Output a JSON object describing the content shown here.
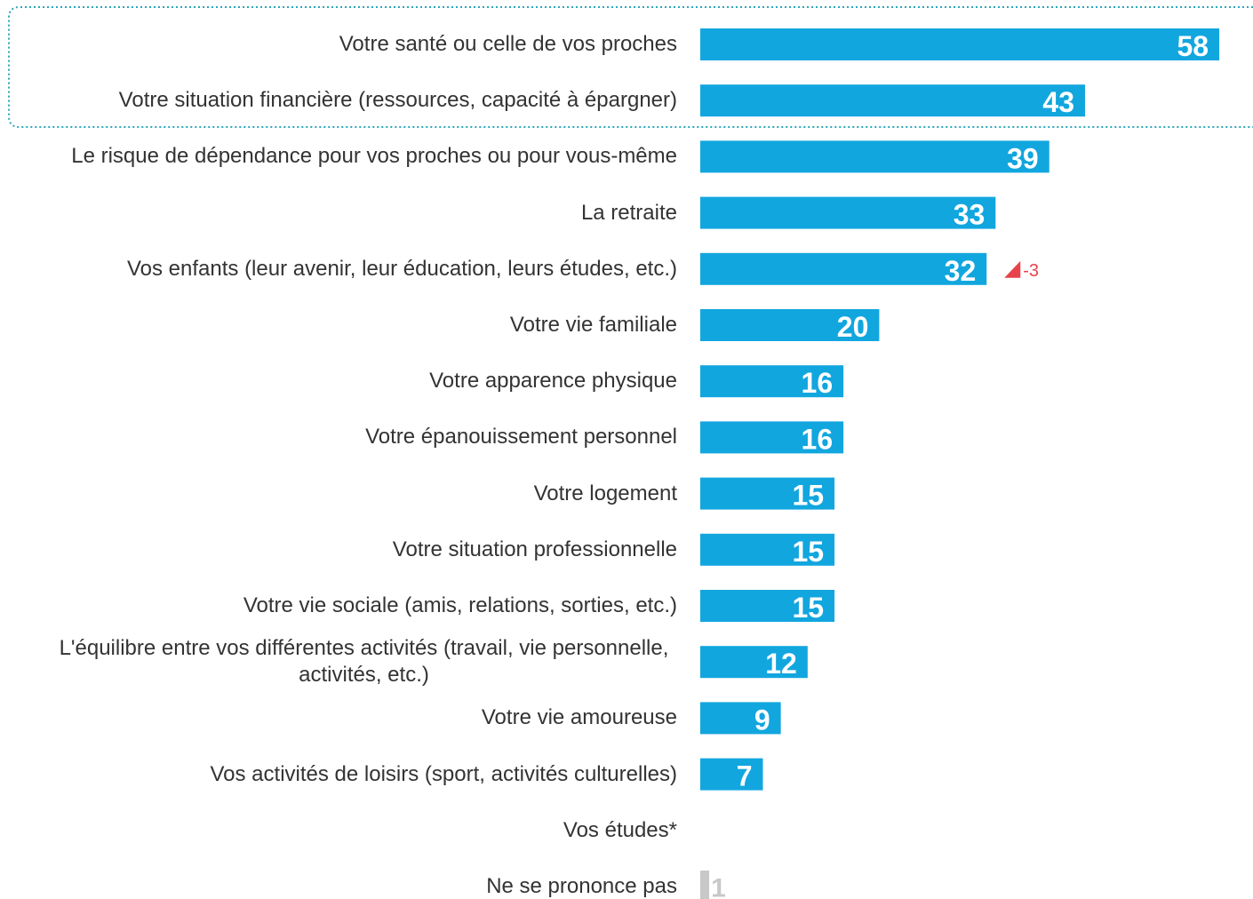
{
  "chart_data": {
    "type": "hbar",
    "categories": [
      "Votre santé ou celle de vos proches",
      "Votre situation financière (ressources, capacité à épargner)",
      "Le risque de dépendance pour vos proches ou pour vous-même",
      "La retraite",
      "Vos enfants (leur avenir, leur éducation, leurs études, etc.)",
      "Votre vie familiale",
      "Votre apparence physique",
      "Votre épanouissement personnel",
      "Votre logement",
      "Votre situation professionnelle",
      "Votre vie sociale (amis, relations, sorties, etc.)",
      "L'équilibre entre vos différentes activités (travail, vie personnelle, activités, etc.)",
      "Votre vie amoureuse",
      "Vos activités de loisirs (sport, activités culturelles)",
      "Vos études*",
      "Ne se prononce pas"
    ],
    "values": [
      58,
      43,
      39,
      33,
      32,
      20,
      16,
      16,
      15,
      15,
      15,
      12,
      9,
      7,
      null,
      1
    ],
    "colors": [
      "#12a6df",
      "#12a6df",
      "#12a6df",
      "#12a6df",
      "#12a6df",
      "#12a6df",
      "#12a6df",
      "#12a6df",
      "#12a6df",
      "#12a6df",
      "#12a6df",
      "#12a6df",
      "#12a6df",
      "#12a6df",
      null,
      "#c8c8c8"
    ],
    "changes": [
      null,
      null,
      null,
      null,
      -3,
      null,
      null,
      null,
      null,
      null,
      null,
      null,
      null,
      null,
      null,
      null
    ],
    "change_color": "#e8424a"
  }
}
